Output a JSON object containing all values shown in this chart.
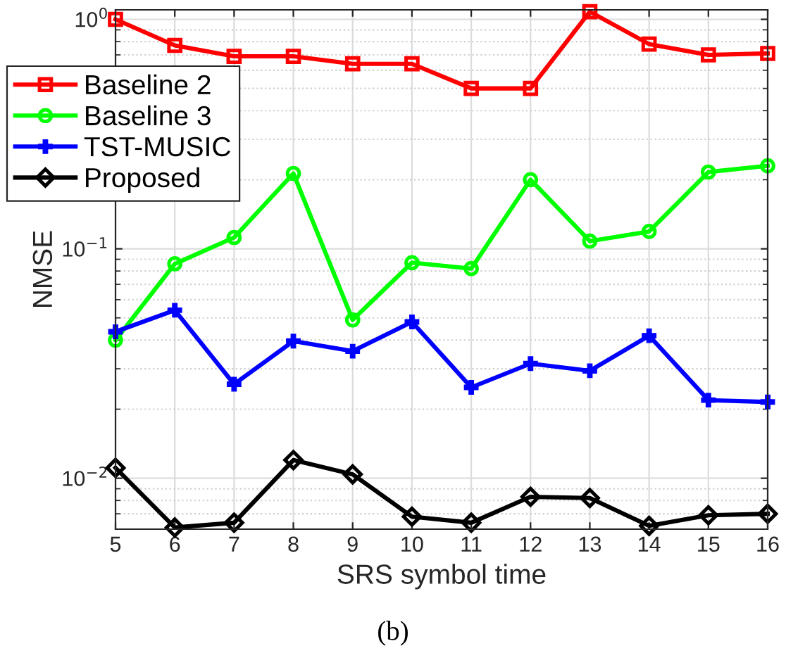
{
  "chart_data": {
    "type": "line",
    "xlabel": "SRS symbol time",
    "ylabel": "NMSE",
    "x": [
      5,
      6,
      7,
      8,
      9,
      10,
      11,
      12,
      13,
      14,
      15,
      16
    ],
    "series": [
      {
        "name": "Baseline 2",
        "color": "#ff0000",
        "marker": "square",
        "values": [
          1.0,
          0.77,
          0.69,
          0.69,
          0.64,
          0.64,
          0.5,
          0.5,
          1.08,
          0.78,
          0.7,
          0.71
        ]
      },
      {
        "name": "Baseline 3",
        "color": "#00ff00",
        "marker": "circle",
        "values": [
          0.04,
          0.086,
          0.112,
          0.213,
          0.049,
          0.087,
          0.082,
          0.2,
          0.108,
          0.119,
          0.216,
          0.23
        ]
      },
      {
        "name": "TST-MUSIC",
        "color": "#0000ff",
        "marker": "cross",
        "values": [
          0.0435,
          0.054,
          0.0257,
          0.0396,
          0.0358,
          0.048,
          0.0249,
          0.0316,
          0.0294,
          0.0418,
          0.0219,
          0.0215
        ]
      },
      {
        "name": "Proposed",
        "color": "#000000",
        "marker": "diamond",
        "values": [
          0.0111,
          0.0061,
          0.0064,
          0.012,
          0.0104,
          0.0068,
          0.0064,
          0.0083,
          0.0082,
          0.0062,
          0.0069,
          0.007
        ]
      }
    ],
    "log": "y",
    "xlim": [
      5,
      16
    ],
    "ylim": [
      0.006,
      1.1
    ],
    "xticks": [
      5,
      6,
      7,
      8,
      9,
      10,
      11,
      12,
      13,
      14,
      15,
      16
    ],
    "yticks": [
      {
        "value": 0.01,
        "label": "10$^{−2}$"
      },
      {
        "value": 0.1,
        "label": "10$^{−1}$"
      },
      {
        "value": 1,
        "label": "10$^{0}$"
      }
    ],
    "grid": true,
    "legend": "top left",
    "line_style": "solid",
    "annotations": [
      "(b)"
    ]
  }
}
